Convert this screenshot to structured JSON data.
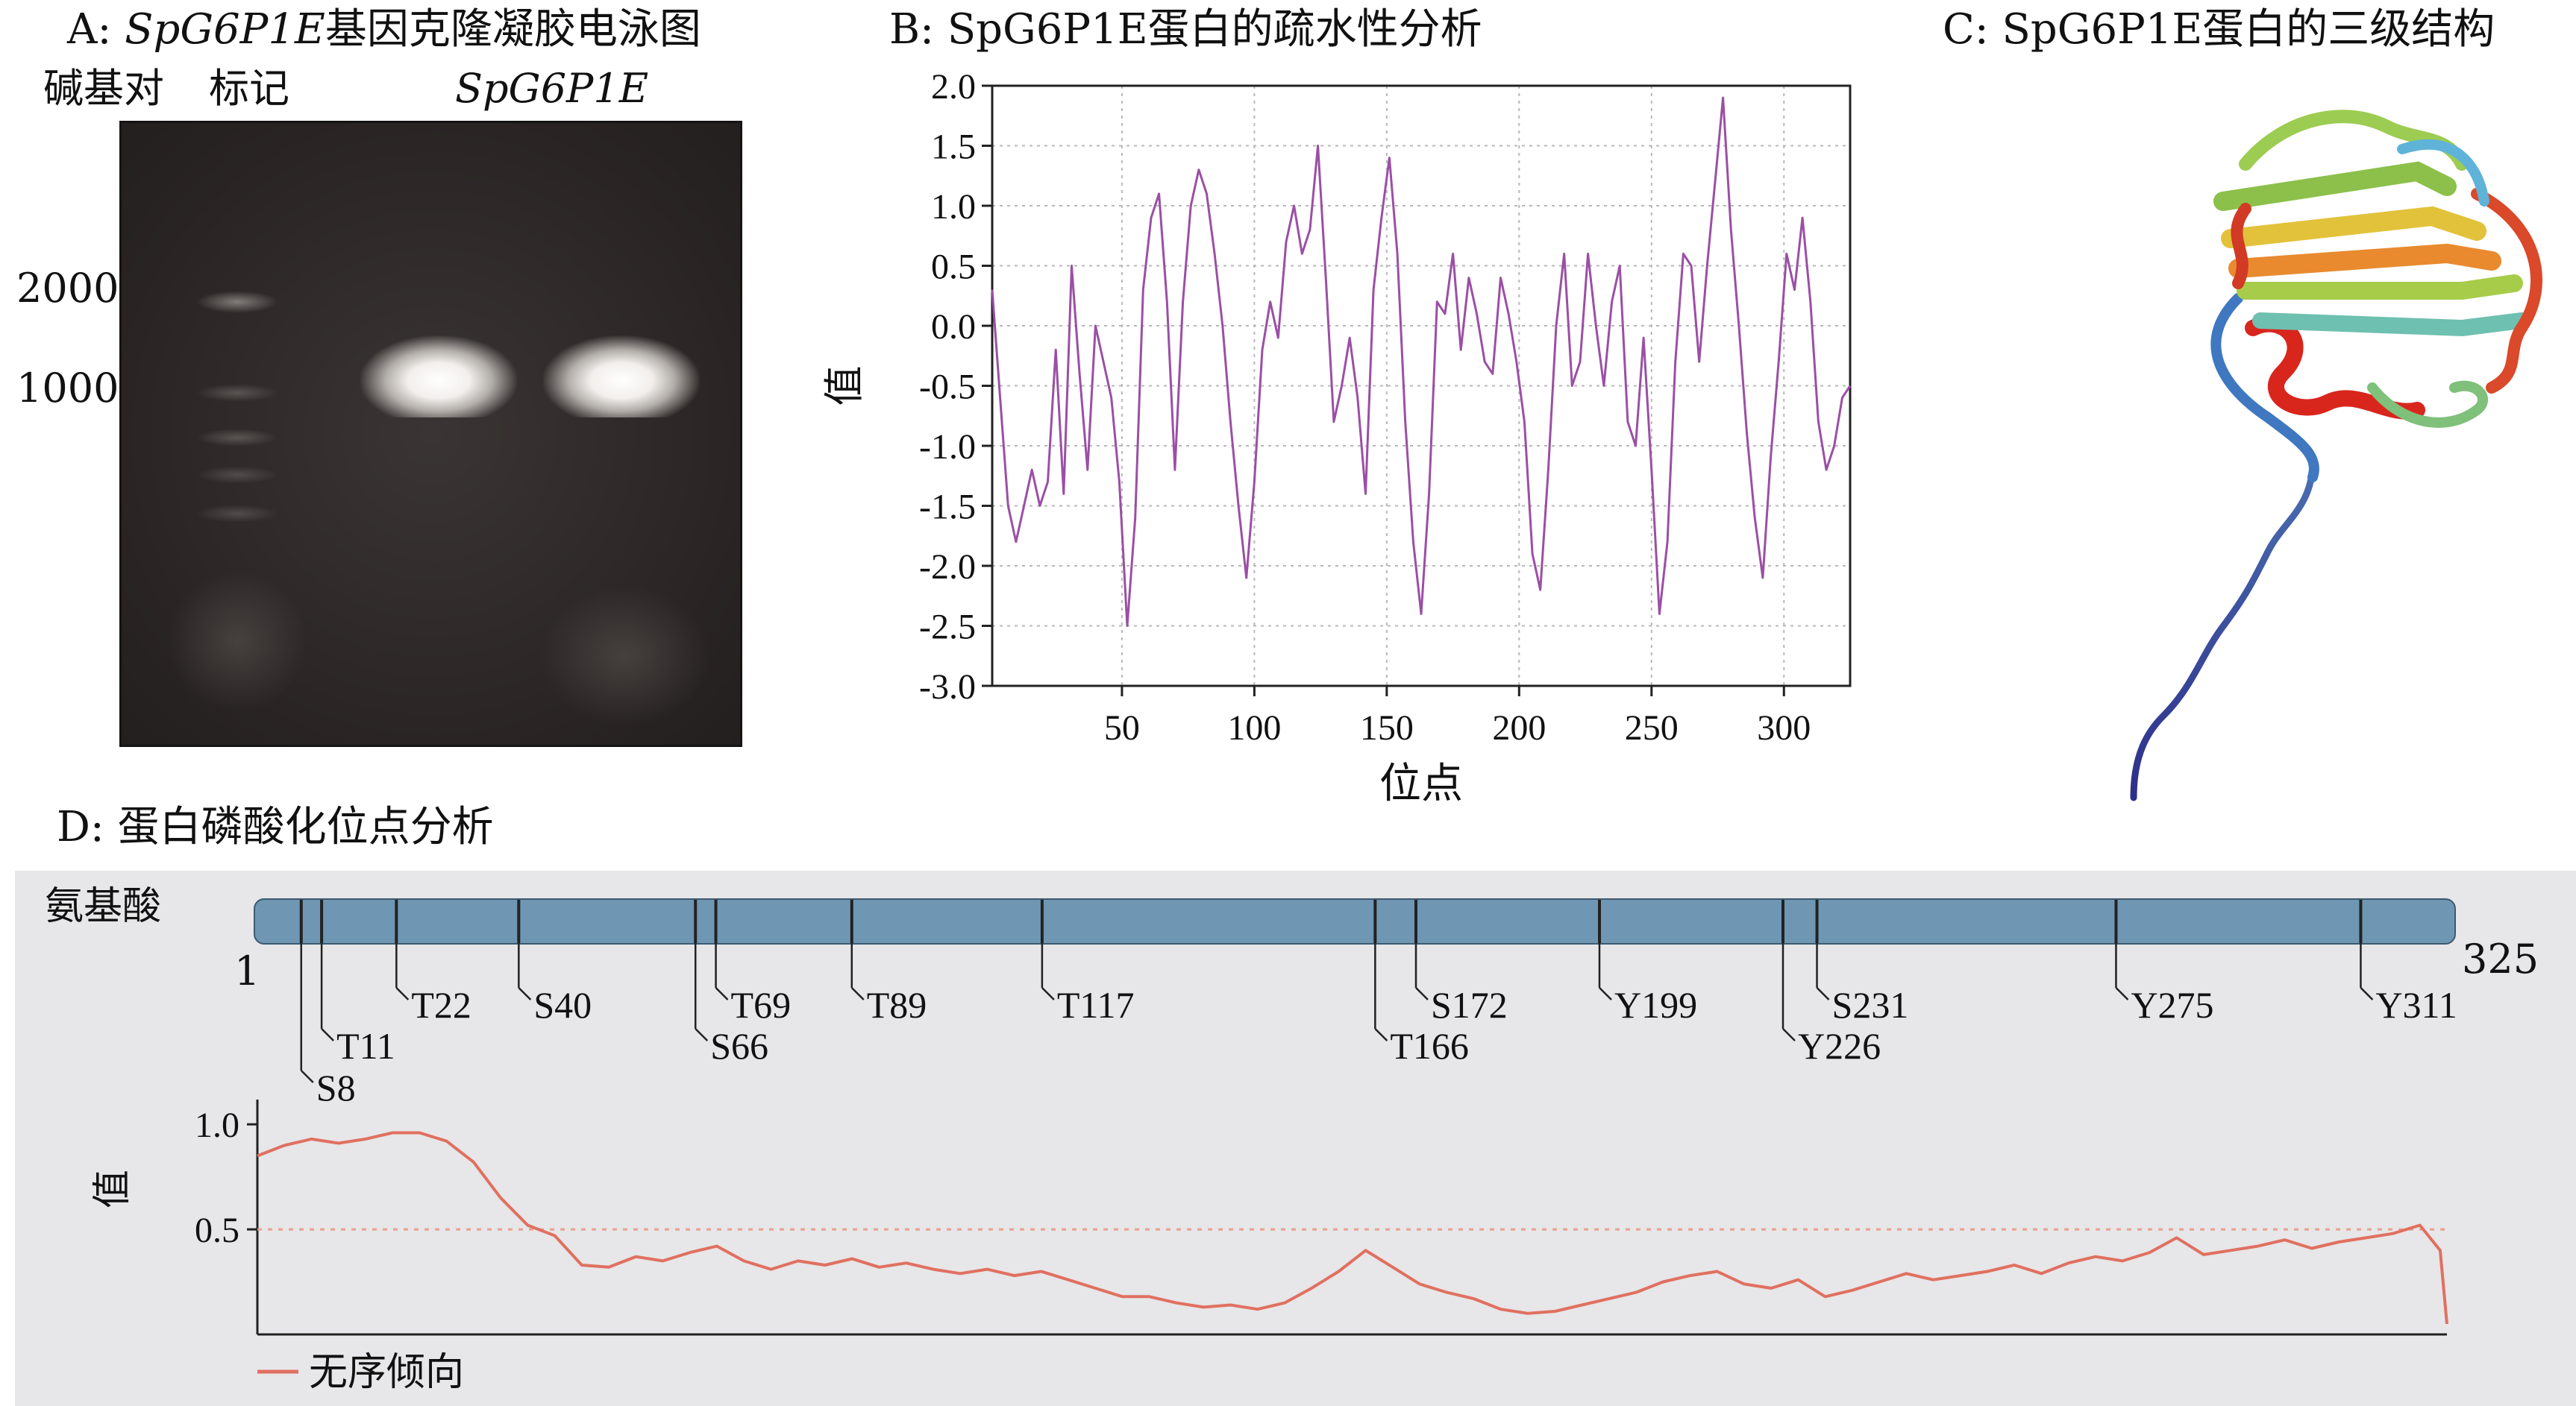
{
  "panelA": {
    "title_prefix": "A: ",
    "title_gene": "SpG6P1E",
    "title_suffix": "基因克隆凝胶电泳图",
    "col_bp": "碱基对",
    "col_marker": "标记",
    "col_gene": "SpG6P1E",
    "size_labels": [
      "2000",
      "1000"
    ]
  },
  "panelB": {
    "title": "B: SpG6P1E蛋白的疏水性分析"
  },
  "panelC": {
    "title": "C: SpG6P1E蛋白的三级结构"
  },
  "panelD": {
    "title": "D: 蛋白磷酸化位点分析",
    "track_label": "氨基酸",
    "start": "1",
    "end": "325",
    "sites": [
      {
        "label": "S8",
        "pos": 8,
        "row": 3
      },
      {
        "label": "T11",
        "pos": 11,
        "row": 2
      },
      {
        "label": "T22",
        "pos": 22,
        "row": 1
      },
      {
        "label": "S40",
        "pos": 40,
        "row": 1
      },
      {
        "label": "S66",
        "pos": 66,
        "row": 2
      },
      {
        "label": "T69",
        "pos": 69,
        "row": 1
      },
      {
        "label": "T89",
        "pos": 89,
        "row": 1
      },
      {
        "label": "T117",
        "pos": 117,
        "row": 1
      },
      {
        "label": "T166",
        "pos": 166,
        "row": 2
      },
      {
        "label": "S172",
        "pos": 172,
        "row": 1
      },
      {
        "label": "Y199",
        "pos": 199,
        "row": 1
      },
      {
        "label": "Y226",
        "pos": 226,
        "row": 2
      },
      {
        "label": "S231",
        "pos": 231,
        "row": 1
      },
      {
        "label": "Y275",
        "pos": 275,
        "row": 1
      },
      {
        "label": "Y311",
        "pos": 311,
        "row": 1
      }
    ]
  },
  "chart_data": [
    {
      "type": "line",
      "panel": "B",
      "xlabel": "位点",
      "ylabel": "值",
      "xlim": [
        1,
        325
      ],
      "ylim": [
        -3.0,
        2.0
      ],
      "xticks": [
        50,
        100,
        150,
        200,
        250,
        300
      ],
      "yticks": [
        2.0,
        1.5,
        1.0,
        0.5,
        0.0,
        -0.5,
        -1.0,
        -1.5,
        -2.0,
        -2.5,
        -3.0
      ],
      "ytick_labels": [
        "2.0",
        "1.5",
        "1.0",
        "0.5",
        "0.0",
        "-0.5",
        "-1.0",
        "-1.5",
        "-2.0",
        "-2.5",
        "-3.0"
      ],
      "grid": true,
      "color": "#9b4fa5",
      "series": [
        {
          "x": [
            1,
            4,
            7,
            10,
            13,
            16,
            19,
            22,
            25,
            28,
            31,
            34,
            37,
            40,
            43,
            46,
            49,
            52,
            55,
            58,
            61,
            64,
            67,
            70,
            73,
            76,
            79,
            82,
            85,
            88,
            91,
            94,
            97,
            100,
            103,
            106,
            109,
            112,
            115,
            118,
            121,
            124,
            127,
            130,
            133,
            136,
            139,
            142,
            145,
            148,
            151,
            154,
            157,
            160,
            163,
            166,
            169,
            172,
            175,
            178,
            181,
            184,
            187,
            190,
            193,
            196,
            199,
            202,
            205,
            208,
            211,
            214,
            217,
            220,
            223,
            226,
            229,
            232,
            235,
            238,
            241,
            244,
            247,
            250,
            253,
            256,
            259,
            262,
            265,
            268,
            271,
            274,
            277,
            280,
            283,
            286,
            289,
            292,
            295,
            298,
            301,
            304,
            307,
            310,
            313,
            316,
            319,
            322,
            325
          ],
          "y": [
            0.3,
            -0.6,
            -1.5,
            -1.8,
            -1.5,
            -1.2,
            -1.5,
            -1.3,
            -0.2,
            -1.4,
            0.5,
            -0.4,
            -1.2,
            0.0,
            -0.3,
            -0.6,
            -1.3,
            -2.5,
            -1.6,
            0.3,
            0.9,
            1.1,
            0.2,
            -1.2,
            0.2,
            1.0,
            1.3,
            1.1,
            0.6,
            0.0,
            -0.8,
            -1.5,
            -2.1,
            -1.3,
            -0.2,
            0.2,
            -0.1,
            0.7,
            1.0,
            0.6,
            0.8,
            1.5,
            0.4,
            -0.8,
            -0.5,
            -0.1,
            -0.6,
            -1.4,
            0.3,
            0.9,
            1.4,
            0.6,
            -0.8,
            -1.8,
            -2.4,
            -1.4,
            0.2,
            0.1,
            0.6,
            -0.2,
            0.4,
            0.1,
            -0.3,
            -0.4,
            0.4,
            0.1,
            -0.3,
            -0.8,
            -1.9,
            -2.2,
            -1.2,
            0.0,
            0.6,
            -0.5,
            -0.3,
            0.6,
            0.0,
            -0.5,
            0.2,
            0.5,
            -0.8,
            -1.0,
            -0.1,
            -1.2,
            -2.4,
            -1.8,
            -0.3,
            0.6,
            0.5,
            -0.3,
            0.5,
            1.2,
            1.9,
            0.8,
            0.0,
            -0.9,
            -1.6,
            -2.1,
            -1.1,
            -0.3,
            0.6,
            0.3,
            0.9,
            0.2,
            -0.8,
            -1.2,
            -1.0,
            -0.6,
            -0.5
          ]
        }
      ]
    },
    {
      "type": "line",
      "panel": "D",
      "ylabel": "值",
      "xlim": [
        1,
        325
      ],
      "ylim": [
        0.0,
        1.1
      ],
      "yticks": [
        1.0,
        0.5
      ],
      "ytick_labels": [
        "1.0",
        "0.5"
      ],
      "threshold": 0.5,
      "color": "#e07060",
      "series": [
        {
          "name": "无序倾向",
          "x": [
            1,
            5,
            9,
            13,
            17,
            21,
            25,
            29,
            33,
            37,
            41,
            45,
            49,
            53,
            57,
            61,
            65,
            69,
            73,
            77,
            81,
            85,
            89,
            93,
            97,
            101,
            105,
            109,
            113,
            117,
            121,
            125,
            129,
            133,
            137,
            141,
            145,
            149,
            153,
            157,
            161,
            165,
            169,
            173,
            177,
            181,
            185,
            189,
            193,
            197,
            201,
            205,
            209,
            213,
            217,
            221,
            225,
            229,
            233,
            237,
            241,
            245,
            249,
            253,
            257,
            261,
            265,
            269,
            273,
            277,
            281,
            285,
            289,
            293,
            297,
            301,
            305,
            309,
            313,
            317,
            321,
            324,
            325
          ],
          "y": [
            0.85,
            0.9,
            0.93,
            0.91,
            0.93,
            0.96,
            0.96,
            0.92,
            0.82,
            0.65,
            0.52,
            0.47,
            0.33,
            0.32,
            0.37,
            0.35,
            0.39,
            0.42,
            0.35,
            0.31,
            0.35,
            0.33,
            0.36,
            0.32,
            0.34,
            0.31,
            0.29,
            0.31,
            0.28,
            0.3,
            0.26,
            0.22,
            0.18,
            0.18,
            0.15,
            0.13,
            0.14,
            0.12,
            0.15,
            0.22,
            0.3,
            0.4,
            0.32,
            0.24,
            0.2,
            0.17,
            0.12,
            0.1,
            0.11,
            0.14,
            0.17,
            0.2,
            0.25,
            0.28,
            0.3,
            0.24,
            0.22,
            0.26,
            0.18,
            0.21,
            0.25,
            0.29,
            0.26,
            0.28,
            0.3,
            0.33,
            0.29,
            0.34,
            0.37,
            0.35,
            0.39,
            0.46,
            0.38,
            0.4,
            0.42,
            0.45,
            0.41,
            0.44,
            0.46,
            0.48,
            0.52,
            0.4,
            0.05
          ]
        }
      ]
    }
  ]
}
